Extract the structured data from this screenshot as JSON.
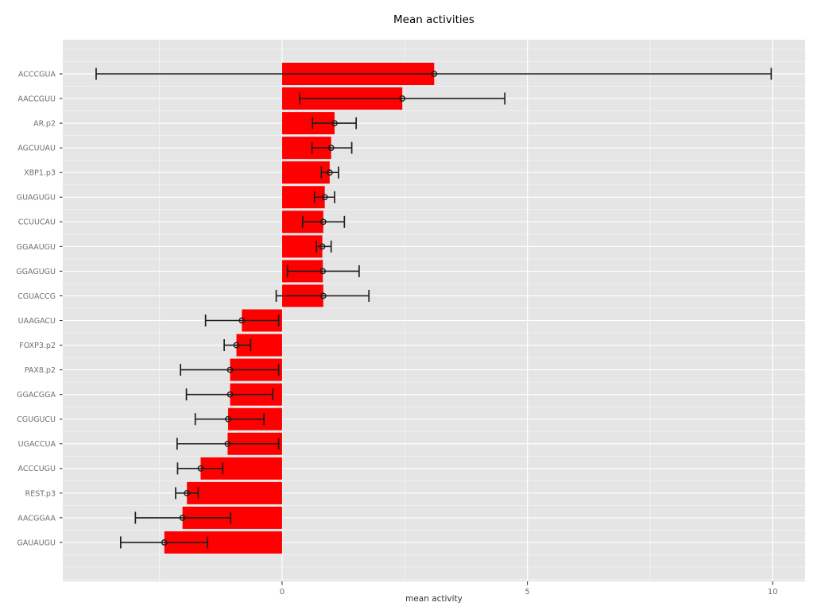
{
  "chart_data": {
    "type": "bar",
    "orientation": "horizontal",
    "title": "Mean activities",
    "xlabel": "mean activity",
    "ylabel": "",
    "xlim": [
      -4.47,
      10.66
    ],
    "x_ticks": {
      "values": [
        0,
        5,
        10
      ],
      "labels": [
        "0",
        "5",
        "10"
      ]
    },
    "x_minor_ticks": [
      -2.5,
      2.5,
      7.5
    ],
    "grid": true,
    "legend": false,
    "categories": [
      "ACCCGUA",
      "AACCGUU",
      "AR.p2",
      "AGCUUAU",
      "XBP1.p3",
      "GUAGUGU",
      "CCUUCAU",
      "GGAAUGU",
      "GGAGUGU",
      "CGUACCG",
      "UAAGACU",
      "FOXP3.p2",
      "PAX8.p2",
      "GGACGGA",
      "CGUGUCU",
      "UGACCUA",
      "ACCCUGU",
      "REST.p3",
      "AACGGAA",
      "GAUAUGU"
    ],
    "series": [
      {
        "name": "mean activity",
        "values": [
          3.1,
          2.45,
          1.07,
          1.0,
          0.97,
          0.87,
          0.84,
          0.82,
          0.83,
          0.84,
          -0.82,
          -0.93,
          -1.06,
          -1.06,
          -1.1,
          -1.11,
          -1.66,
          -1.94,
          -2.03,
          -2.4
        ],
        "error_low": [
          -3.79,
          0.36,
          0.62,
          0.61,
          0.8,
          0.66,
          0.42,
          0.7,
          0.11,
          -0.12,
          -1.56,
          -1.18,
          -2.07,
          -1.95,
          -1.77,
          -2.14,
          -2.13,
          -2.17,
          -2.99,
          -3.29
        ],
        "error_high": [
          9.97,
          4.54,
          1.51,
          1.42,
          1.15,
          1.07,
          1.27,
          1.0,
          1.57,
          1.77,
          -0.07,
          -0.64,
          -0.07,
          -0.19,
          -0.37,
          -0.07,
          -1.21,
          -1.71,
          -1.05,
          -1.52
        ]
      }
    ],
    "colors": {
      "bar": "#FF0000",
      "panel_bg": "#E5E5E5",
      "grid_major": "#FFFFFF",
      "grid_minor_opacity": 0.55,
      "error_bar": "#1F1F1F",
      "marker_stroke": "#1A1A1A",
      "tick_mark": "#333333",
      "axis_tick_label": "#707070",
      "y_axis_label": "#707070",
      "axis_title": "#333333",
      "title": "#000000"
    }
  }
}
